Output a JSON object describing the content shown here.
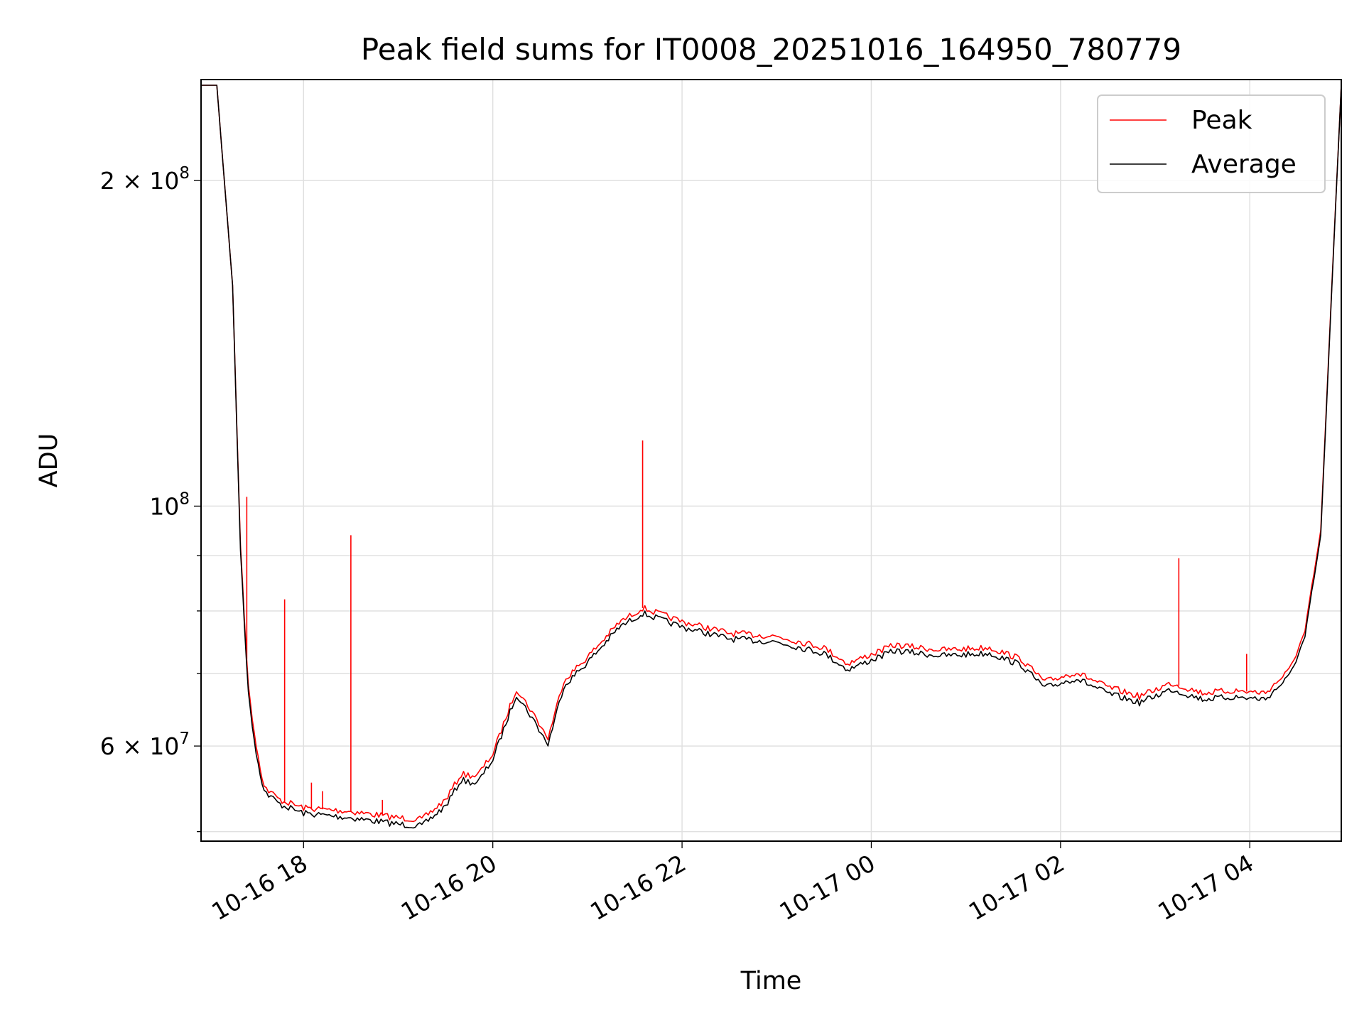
{
  "chart_data": {
    "type": "line",
    "title": "Peak field sums for IT0008_20251016_164950_780779",
    "xlabel": "Time",
    "ylabel": "ADU",
    "y_scale": "log",
    "ylim": [
      49000000,
      248000000
    ],
    "xlim": [
      "2025-10-16 16:55",
      "2025-10-17 04:58"
    ],
    "grid": true,
    "legend": "top-right",
    "x_ticks": [
      {
        "label": "10-16 18",
        "t": "2025-10-16 18:00"
      },
      {
        "label": "10-16 20",
        "t": "2025-10-16 20:00"
      },
      {
        "label": "10-16 22",
        "t": "2025-10-16 22:00"
      },
      {
        "label": "10-17 00",
        "t": "2025-10-17 00:00"
      },
      {
        "label": "10-17 02",
        "t": "2025-10-17 02:00"
      },
      {
        "label": "10-17 04",
        "t": "2025-10-17 04:00"
      }
    ],
    "y_ticks_major": [
      {
        "value": 60000000,
        "mant": "6",
        "times": " × 10",
        "exp": "7"
      },
      {
        "value": 100000000,
        "mant": "",
        "times": "10",
        "exp": "8"
      },
      {
        "value": 200000000,
        "mant": "2",
        "times": " × 10",
        "exp": "8"
      }
    ],
    "y_ticks_minor": [
      50000000,
      70000000,
      80000000,
      90000000
    ],
    "x": [
      "2025-10-16 16:55",
      "2025-10-16 17:05",
      "2025-10-16 17:15",
      "2025-10-16 17:20",
      "2025-10-16 17:25",
      "2025-10-16 17:30",
      "2025-10-16 17:35",
      "2025-10-16 17:45",
      "2025-10-16 18:00",
      "2025-10-16 18:30",
      "2025-10-16 19:00",
      "2025-10-16 19:15",
      "2025-10-16 19:30",
      "2025-10-16 19:40",
      "2025-10-16 19:50",
      "2025-10-16 20:00",
      "2025-10-16 20:15",
      "2025-10-16 20:25",
      "2025-10-16 20:35",
      "2025-10-16 20:45",
      "2025-10-16 21:00",
      "2025-10-16 21:20",
      "2025-10-16 21:35",
      "2025-10-16 22:00",
      "2025-10-16 22:30",
      "2025-10-16 23:00",
      "2025-10-16 23:30",
      "2025-10-16 23:45",
      "2025-10-17 00:15",
      "2025-10-17 00:45",
      "2025-10-17 01:15",
      "2025-10-17 01:35",
      "2025-10-17 01:50",
      "2025-10-17 02:10",
      "2025-10-17 02:30",
      "2025-10-17 02:50",
      "2025-10-17 03:10",
      "2025-10-17 03:30",
      "2025-10-17 03:50",
      "2025-10-17 04:10",
      "2025-10-17 04:25",
      "2025-10-17 04:35",
      "2025-10-17 04:45",
      "2025-10-17 04:52",
      "2025-10-17 04:58"
    ],
    "series": [
      {
        "name": "Peak",
        "color": "#ff0000",
        "values": [
          245000000,
          245000000,
          160000000,
          92000000,
          68000000,
          60000000,
          55000000,
          53500000,
          52600000,
          52200000,
          51500000,
          51300000,
          53500000,
          56500000,
          56300000,
          59000000,
          67800000,
          64500000,
          61000000,
          69000000,
          72500000,
          78000000,
          80500000,
          78200000,
          76300000,
          75800000,
          74000000,
          71500000,
          74400000,
          73600000,
          74000000,
          72200000,
          68800000,
          70200000,
          68000000,
          66700000,
          68600000,
          67200000,
          67500000,
          67200000,
          70500000,
          76500000,
          95000000,
          160000000,
          245000000
        ],
        "spikes": [
          {
            "t": "2025-10-16 17:24",
            "value": 102000000
          },
          {
            "t": "2025-10-16 17:48",
            "value": 82000000
          },
          {
            "t": "2025-10-16 18:05",
            "value": 55500000
          },
          {
            "t": "2025-10-16 18:12",
            "value": 54500000
          },
          {
            "t": "2025-10-16 18:30",
            "value": 94000000
          },
          {
            "t": "2025-10-16 18:50",
            "value": 53500000
          },
          {
            "t": "2025-10-16 21:35",
            "value": 115000000
          },
          {
            "t": "2025-10-17 03:15",
            "value": 89500000
          },
          {
            "t": "2025-10-17 03:58",
            "value": 73000000
          }
        ]
      },
      {
        "name": "Average",
        "color": "#000000",
        "values": [
          245000000,
          245000000,
          160000000,
          91000000,
          67000000,
          59000000,
          54500000,
          53000000,
          52000000,
          51500000,
          50800000,
          50600000,
          52800000,
          55800000,
          55400000,
          58300000,
          67000000,
          63700000,
          60200000,
          68200000,
          71700000,
          77200000,
          79600000,
          77300000,
          75400000,
          74900000,
          73100000,
          70600000,
          73500000,
          72700000,
          73100000,
          71300000,
          67900000,
          69300000,
          67100000,
          65800000,
          67700000,
          66300000,
          66600000,
          66300000,
          69600000,
          75600000,
          94000000,
          159000000,
          245000000
        ]
      }
    ]
  }
}
